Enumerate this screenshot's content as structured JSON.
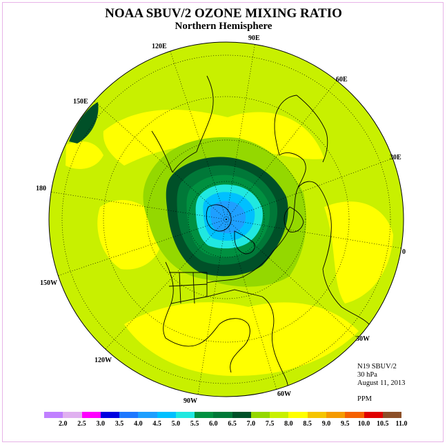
{
  "header": {
    "title": "NOAA SBUV/2 OZONE MIXING RATIO",
    "subtitle": "Northern Hemisphere"
  },
  "longitude_labels": {
    "e90": "90E",
    "e60": "60E",
    "e30": "30E",
    "zero": "0",
    "w30": "30W",
    "w60": "60W",
    "w90": "90W",
    "w120": "120W",
    "w150": "150W",
    "d180": "180",
    "e150": "150E",
    "e120": "120E"
  },
  "info": {
    "instrument": "N19 SBUV/2",
    "level": "30 hPa",
    "date": "August 11, 2013",
    "units": "PPM"
  },
  "colorbar": {
    "labels": [
      "2.0",
      "2.5",
      "3.0",
      "3.5",
      "4.0",
      "4.5",
      "5.0",
      "5.5",
      "6.0",
      "6.5",
      "7.0",
      "7.5",
      "8.0",
      "8.5",
      "9.0",
      "9.5",
      "10.0",
      "10.5",
      "11.0"
    ],
    "colors": [
      "#c080ff",
      "#e0b0f0",
      "#ff00ff",
      "#0000e0",
      "#1e78ff",
      "#1e9fff",
      "#00c0ff",
      "#20e8e0",
      "#009040",
      "#007838",
      "#005028",
      "#94d800",
      "#c8f000",
      "#ffff00",
      "#f5c400",
      "#f59a00",
      "#f56000",
      "#e00000",
      "#8c4f28"
    ]
  },
  "map_colors": {
    "ocean_ring": "#c8f000",
    "high_85": "#ffff00",
    "band_75": "#94d800",
    "band_70": "#005028",
    "band_65": "#007838",
    "band_60": "#009040",
    "band_55": "#20e8e0",
    "band_50": "#00c0ff",
    "band_45": "#1e9fff"
  }
}
